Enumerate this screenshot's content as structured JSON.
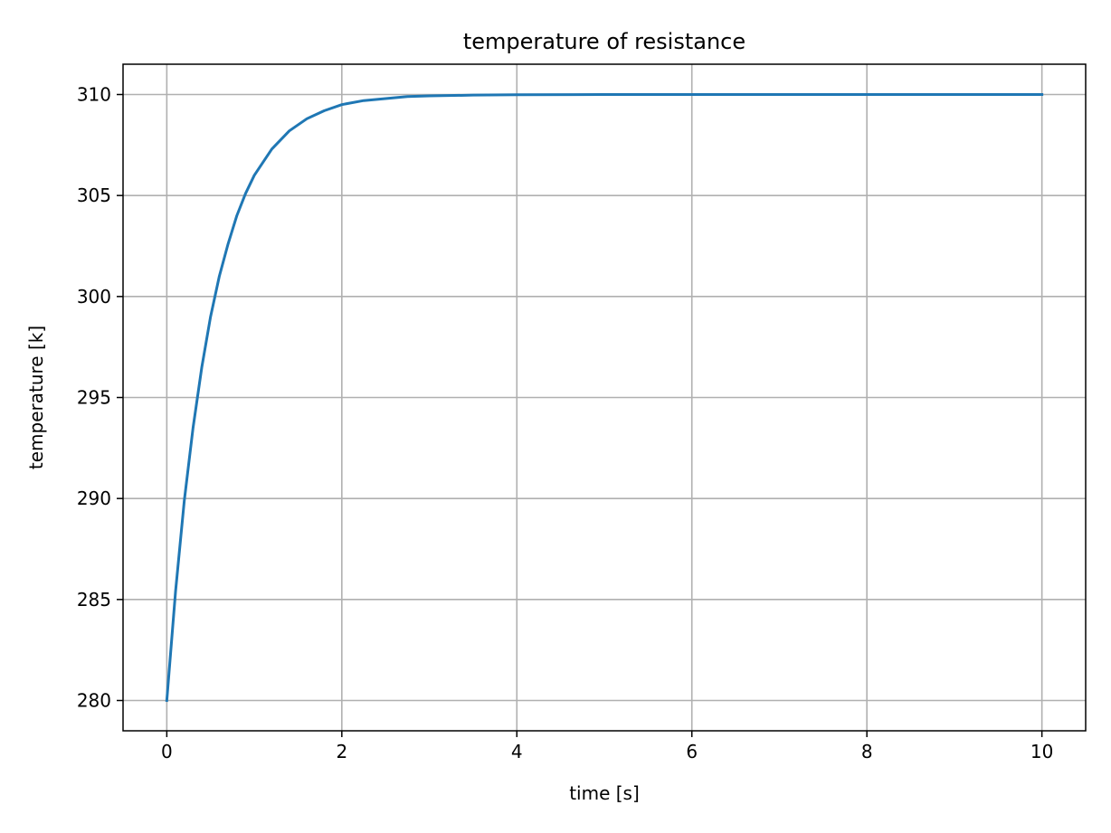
{
  "chart_data": {
    "type": "line",
    "title": "temperature of resistance",
    "xlabel": "time [s]",
    "ylabel": "temperature [k]",
    "xlim": [
      -0.5,
      10.5
    ],
    "ylim": [
      278.5,
      311.5
    ],
    "xticks": [
      0,
      2,
      4,
      6,
      8,
      10
    ],
    "yticks": [
      280,
      285,
      290,
      295,
      300,
      305,
      310
    ],
    "grid": true,
    "legend": null,
    "series": [
      {
        "color": "#1f77b4",
        "x": [
          0,
          0.1,
          0.2,
          0.3,
          0.4,
          0.5,
          0.6,
          0.7,
          0.8,
          0.9,
          1.0,
          1.2,
          1.4,
          1.6,
          1.8,
          2.0,
          2.25,
          2.5,
          2.75,
          3.0,
          3.5,
          4.0,
          5.0,
          6.0,
          7.0,
          8.0,
          9.0,
          10.0
        ],
        "y": [
          280.0,
          285.4,
          289.9,
          293.5,
          296.5,
          299.0,
          301.0,
          302.6,
          304.0,
          305.1,
          306.0,
          307.3,
          308.2,
          308.8,
          309.2,
          309.5,
          309.7,
          309.8,
          309.9,
          309.93,
          309.97,
          309.99,
          310.0,
          310.0,
          310.0,
          310.0,
          310.0,
          310.0
        ]
      }
    ]
  }
}
